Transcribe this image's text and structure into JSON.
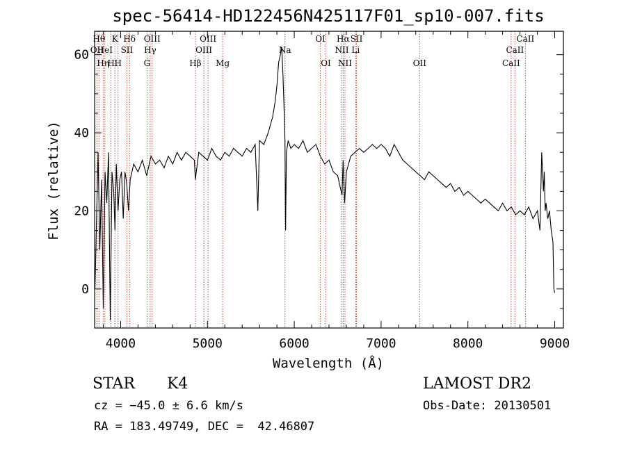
{
  "chart_data": {
    "type": "line",
    "title": "spec-56414-HD122456N425117F01_sp10-007.fits",
    "xlabel": "Wavelength (Å)",
    "ylabel": "Flux (relative)",
    "xlim": [
      3700,
      9100
    ],
    "ylim": [
      -10,
      66
    ],
    "xticks": [
      4000,
      5000,
      6000,
      7000,
      8000,
      9000
    ],
    "yticks": [
      0,
      20,
      40,
      60
    ],
    "x_tick_labels": [
      "4000",
      "5000",
      "6000",
      "7000",
      "8000",
      "9000"
    ],
    "y_tick_labels": [
      "0",
      "20",
      "40",
      "60"
    ],
    "grid": false,
    "series": [
      {
        "color": "#000000",
        "x": [
          3705,
          3725,
          3740,
          3760,
          3780,
          3800,
          3820,
          3840,
          3860,
          3880,
          3900,
          3920,
          3935,
          3950,
          3970,
          3990,
          4010,
          4030,
          4050,
          4070,
          4090,
          4110,
          4150,
          4200,
          4250,
          4300,
          4350,
          4400,
          4450,
          4500,
          4550,
          4600,
          4650,
          4700,
          4750,
          4800,
          4850,
          4860,
          4900,
          4950,
          5000,
          5050,
          5100,
          5150,
          5200,
          5250,
          5300,
          5350,
          5400,
          5450,
          5500,
          5550,
          5580,
          5600,
          5650,
          5700,
          5750,
          5780,
          5800,
          5820,
          5840,
          5855,
          5870,
          5880,
          5893,
          5900,
          5910,
          5930,
          5960,
          6000,
          6050,
          6100,
          6150,
          6200,
          6250,
          6300,
          6350,
          6400,
          6450,
          6500,
          6550,
          6563,
          6580,
          6600,
          6650,
          6700,
          6750,
          6800,
          6850,
          6900,
          6950,
          7000,
          7050,
          7100,
          7150,
          7200,
          7250,
          7300,
          7350,
          7400,
          7450,
          7500,
          7550,
          7600,
          7650,
          7700,
          7750,
          7800,
          7850,
          7900,
          7950,
          8000,
          8050,
          8100,
          8150,
          8200,
          8250,
          8300,
          8350,
          8400,
          8450,
          8500,
          8550,
          8600,
          8650,
          8700,
          8750,
          8800,
          8830,
          8850,
          8870,
          8880,
          8890,
          8900,
          8920,
          8940,
          8960,
          8980,
          8990,
          9000
        ],
        "y": [
          0,
          20,
          35,
          10,
          28,
          -5,
          30,
          22,
          35,
          -8,
          30,
          25,
          15,
          32,
          20,
          28,
          30,
          18,
          30,
          27,
          20,
          28,
          32,
          30,
          33,
          29,
          34,
          32,
          33,
          31,
          34,
          32,
          35,
          33,
          35,
          34,
          33,
          28,
          35,
          34,
          33,
          36,
          34,
          33,
          35,
          34,
          36,
          35,
          34,
          36,
          35,
          37,
          20,
          38,
          37,
          40,
          44,
          48,
          52,
          58,
          60,
          62,
          55,
          48,
          38,
          15,
          35,
          38,
          36,
          37,
          36,
          38,
          35,
          36,
          37,
          34,
          32,
          33,
          30,
          29,
          24,
          33,
          22,
          30,
          34,
          35,
          36,
          35,
          36,
          37,
          36,
          37,
          36,
          34,
          37,
          35,
          33,
          32,
          31,
          30,
          29,
          28,
          30,
          29,
          28,
          27,
          26,
          27,
          25,
          26,
          24,
          25,
          24,
          23,
          22,
          23,
          22,
          21,
          20,
          22,
          20,
          21,
          19,
          20,
          19,
          21,
          18,
          20,
          15,
          35,
          25,
          30,
          20,
          22,
          18,
          20,
          15,
          12,
          0,
          -1
        ]
      }
    ],
    "annotations": [
      {
        "wavelength": 3727,
        "label": "OII",
        "row": 2
      },
      {
        "wavelength": 3750,
        "label": "Hθ",
        "row": 1
      },
      {
        "wavelength": 3798,
        "label": "Hη",
        "row": 3
      },
      {
        "wavelength": 3819,
        "label": "HeI",
        "row": 2
      },
      {
        "wavelength": 3889,
        "label": "H",
        "row": 3
      },
      {
        "wavelength": 3934,
        "label": "K",
        "row": 1
      },
      {
        "wavelength": 3970,
        "label": "H",
        "row": 3
      },
      {
        "wavelength": 4072,
        "label": "SII",
        "row": 2
      },
      {
        "wavelength": 4102,
        "label": "Hδ",
        "row": 1
      },
      {
        "wavelength": 4304,
        "label": "G",
        "row": 3
      },
      {
        "wavelength": 4340,
        "label": "Hγ",
        "row": 2
      },
      {
        "wavelength": 4363,
        "label": "OIII",
        "row": 1
      },
      {
        "wavelength": 4861,
        "label": "Hβ",
        "row": 3
      },
      {
        "wavelength": 4959,
        "label": "OIII",
        "row": 2
      },
      {
        "wavelength": 5007,
        "label": "OIII",
        "row": 1
      },
      {
        "wavelength": 5175,
        "label": "Mg",
        "row": 3
      },
      {
        "wavelength": 5893,
        "label": "Na",
        "row": 2
      },
      {
        "wavelength": 6300,
        "label": "OI",
        "row": 1
      },
      {
        "wavelength": 6364,
        "label": "OI",
        "row": 3
      },
      {
        "wavelength": 6548,
        "label": "NII",
        "row": 2
      },
      {
        "wavelength": 6563,
        "label": "Hα",
        "row": 1
      },
      {
        "wavelength": 6584,
        "label": "NII",
        "row": 3
      },
      {
        "wavelength": 6707,
        "label": "Li",
        "row": 2
      },
      {
        "wavelength": 6717,
        "label": "SII",
        "row": 1
      },
      {
        "wavelength": 7444,
        "label": "OII",
        "row": 3
      },
      {
        "wavelength": 8498,
        "label": "CaII",
        "row": 3
      },
      {
        "wavelength": 8542,
        "label": "CaII",
        "row": 2
      },
      {
        "wavelength": 8662,
        "label": "CaII",
        "row": 1
      }
    ]
  },
  "info": {
    "class": "STAR",
    "subclass": "K4",
    "survey": "LAMOST DR2",
    "cz": "cz = −45.0 ± 6.6 km/s",
    "obs_date": "Obs-Date: 20130501",
    "radec": "RA = 183.49749, DEC =  42.46807"
  },
  "colors": {
    "line_marker": "#c0392b",
    "spectrum": "#000000"
  }
}
